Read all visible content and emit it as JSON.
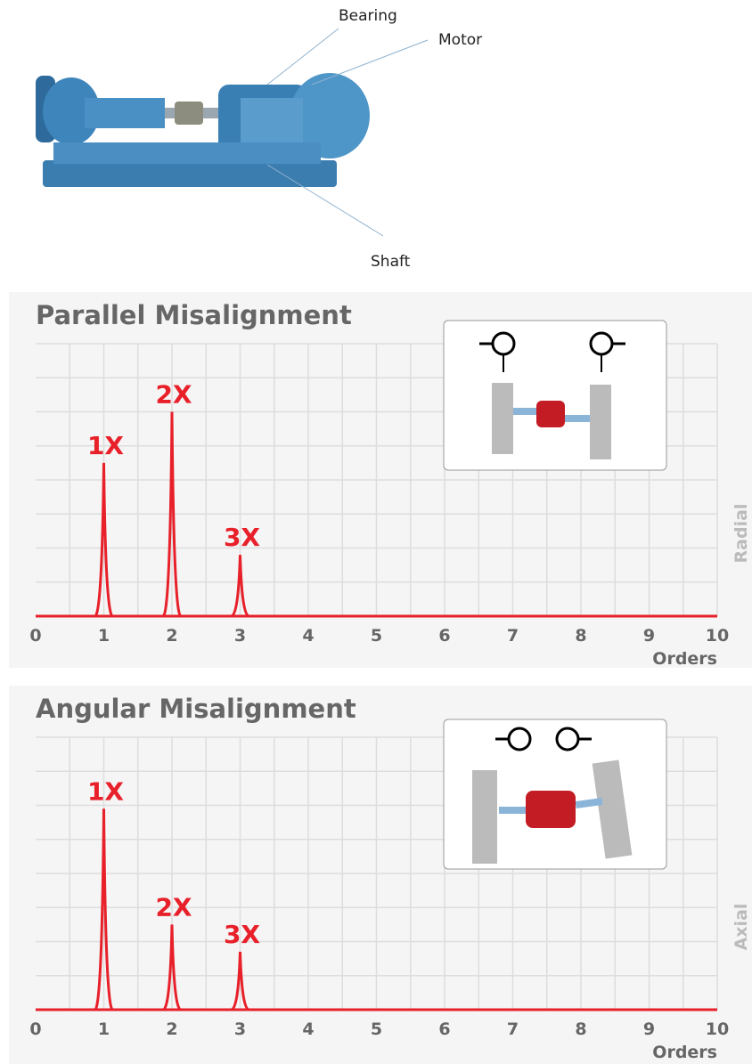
{
  "diagram": {
    "labels": {
      "bearing": "Bearing",
      "motor": "Motor",
      "shaft": "Shaft"
    }
  },
  "chart_data": [
    {
      "type": "spectrum",
      "title": "Parallel Misalignment",
      "x_label": "Orders",
      "side_label": "Radial",
      "x": [
        1,
        2,
        3
      ],
      "values": [
        4.5,
        6.0,
        1.8
      ],
      "peak_labels": [
        "1X",
        "2X",
        "3X"
      ],
      "color": "#e8202a",
      "xlim": [
        0,
        10
      ],
      "xticks": [
        0,
        1,
        2,
        3,
        4,
        5,
        6,
        7,
        8,
        9,
        10
      ],
      "xgrid": [
        0.5,
        1,
        1.5,
        2,
        2.5,
        3,
        3.5,
        4,
        4.5,
        5,
        5.5,
        6,
        6.5,
        7,
        7.5,
        8,
        8.5,
        9,
        9.5,
        10
      ],
      "ylim": [
        0,
        8
      ],
      "yticks": [
        1,
        2,
        3,
        4,
        5,
        6,
        7,
        8
      ],
      "grid": true
    },
    {
      "type": "spectrum",
      "title": "Angular Misalignment",
      "x_label": "Orders",
      "side_label": "Axial",
      "x": [
        1,
        2,
        3
      ],
      "values": [
        5.9,
        2.5,
        1.7
      ],
      "peak_labels": [
        "1X",
        "2X",
        "3X"
      ],
      "color": "#e8202a",
      "xlim": [
        0,
        10
      ],
      "xticks": [
        0,
        1,
        2,
        3,
        4,
        5,
        6,
        7,
        8,
        9,
        10
      ],
      "xgrid": [
        0.5,
        1,
        1.5,
        2,
        2.5,
        3,
        3.5,
        4,
        4.5,
        5,
        5.5,
        6,
        6.5,
        7,
        7.5,
        8,
        8.5,
        9,
        9.5,
        10
      ],
      "ylim": [
        0,
        8
      ],
      "yticks": [
        1,
        2,
        3,
        4,
        5,
        6,
        7,
        8
      ],
      "grid": true
    }
  ]
}
